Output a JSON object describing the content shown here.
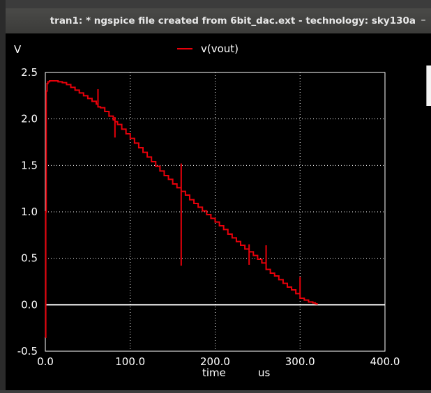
{
  "window": {
    "title": "tran1: * ngspice file created from 6bit_dac.ext - technology: sky130a",
    "minimize_glyph": "–"
  },
  "colors": {
    "background": "#000000",
    "grid": "#ffffff",
    "trace": "#e8000a",
    "axis_text": "#ffffff"
  },
  "chart_data": {
    "type": "line",
    "ylabel": "V",
    "xlabel": "time",
    "xunit": "us",
    "xlim": [
      0,
      400
    ],
    "ylim": [
      -0.5,
      2.5
    ],
    "xticks": [
      0,
      100,
      200,
      300,
      400
    ],
    "xtick_labels": [
      "0.0",
      "100.0",
      "200.0",
      "300.0",
      "400.0"
    ],
    "yticks": [
      -0.5,
      0.0,
      0.5,
      1.0,
      1.5,
      2.0,
      2.5
    ],
    "ytick_labels": [
      "-0.5",
      "0.0",
      "0.5",
      "1.0",
      "1.5",
      "2.0",
      "2.5"
    ],
    "grid": true,
    "zero_line": true,
    "legend": "top-center",
    "series": [
      {
        "name": "v(vout)",
        "x": [
          0,
          0.5,
          1,
          2,
          3,
          5,
          10,
          15,
          20,
          25,
          30,
          35,
          40,
          45,
          50,
          55,
          60,
          62,
          62,
          62,
          65,
          70,
          75,
          80,
          82,
          82,
          82,
          85,
          90,
          95,
          100,
          105,
          110,
          115,
          120,
          125,
          130,
          135,
          140,
          145,
          150,
          155,
          160,
          160,
          160,
          165,
          170,
          175,
          180,
          185,
          190,
          195,
          200,
          205,
          210,
          215,
          220,
          225,
          230,
          235,
          240,
          240,
          240,
          245,
          250,
          255,
          260,
          260,
          260,
          265,
          270,
          275,
          280,
          285,
          290,
          295,
          300,
          300,
          300,
          305,
          310,
          315,
          318,
          320
        ],
        "y": [
          -0.35,
          1.0,
          2.3,
          2.38,
          2.4,
          2.41,
          2.41,
          2.4,
          2.39,
          2.37,
          2.34,
          2.31,
          2.28,
          2.25,
          2.22,
          2.19,
          2.16,
          2.32,
          2.13,
          2.13,
          2.12,
          2.08,
          2.03,
          1.99,
          1.8,
          2.02,
          1.97,
          1.94,
          1.89,
          1.84,
          1.79,
          1.74,
          1.69,
          1.64,
          1.59,
          1.54,
          1.49,
          1.44,
          1.39,
          1.35,
          1.3,
          1.26,
          1.52,
          0.42,
          1.22,
          1.18,
          1.13,
          1.09,
          1.05,
          1.01,
          0.97,
          0.93,
          0.89,
          0.85,
          0.81,
          0.76,
          0.72,
          0.68,
          0.64,
          0.6,
          0.65,
          0.43,
          0.57,
          0.53,
          0.49,
          0.45,
          0.41,
          0.64,
          0.38,
          0.34,
          0.31,
          0.27,
          0.23,
          0.19,
          0.16,
          0.12,
          0.09,
          0.3,
          0.07,
          0.05,
          0.03,
          0.02,
          0.01,
          0.0
        ]
      }
    ]
  }
}
